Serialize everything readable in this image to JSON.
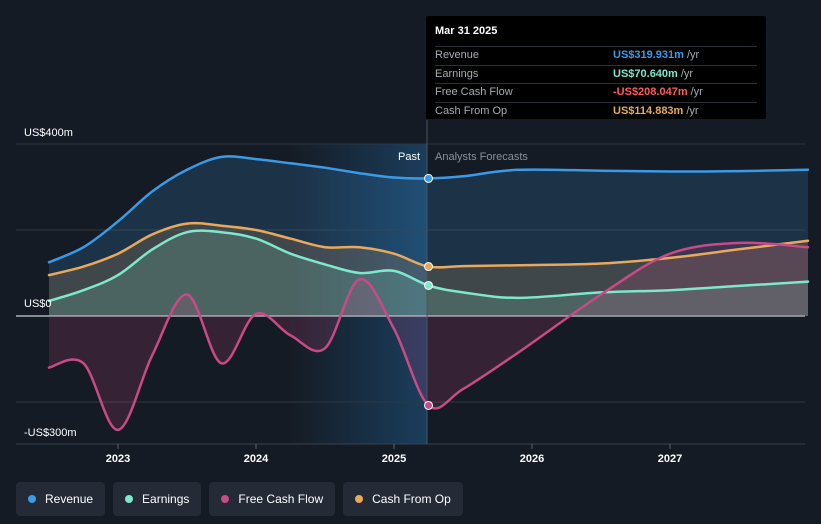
{
  "chart_data": {
    "type": "area",
    "x_ticks": [
      "2023",
      "2024",
      "2025",
      "2026",
      "2027"
    ],
    "y_axis": {
      "labels": [
        "US$400m",
        "US$0",
        "-US$300m"
      ],
      "ylim": [
        -300,
        400
      ]
    },
    "dividers": {
      "past_label": "Past",
      "forecast_label": "Analysts Forecasts"
    },
    "series": [
      {
        "key": "revenue",
        "name": "Revenue",
        "color": "#3b9ae6",
        "x": [
          2022.5,
          2022.75,
          2023.0,
          2023.25,
          2023.5,
          2023.75,
          2024.0,
          2024.25,
          2024.5,
          2024.75,
          2025.0,
          2025.25,
          2025.5,
          2025.9,
          2026.5,
          2027.0,
          2027.5,
          2028.0
        ],
        "values": [
          125,
          160,
          220,
          290,
          340,
          370,
          365,
          355,
          345,
          332,
          322,
          320,
          325,
          340,
          338,
          336,
          337,
          340
        ]
      },
      {
        "key": "earnings",
        "name": "Earnings",
        "color": "#7ee8cd",
        "x": [
          2022.5,
          2022.75,
          2023.0,
          2023.25,
          2023.5,
          2023.75,
          2024.0,
          2024.25,
          2024.5,
          2024.75,
          2025.0,
          2025.25,
          2025.5,
          2025.9,
          2026.5,
          2027.0,
          2027.5,
          2028.0
        ],
        "values": [
          35,
          60,
          95,
          155,
          195,
          195,
          180,
          145,
          120,
          100,
          105,
          71,
          55,
          42,
          55,
          60,
          70,
          80
        ]
      },
      {
        "key": "free_cash_flow",
        "name": "Free Cash Flow",
        "color": "#c84a86",
        "x": [
          2022.5,
          2022.75,
          2023.0,
          2023.25,
          2023.5,
          2023.75,
          2024.0,
          2024.25,
          2024.5,
          2024.75,
          2025.0,
          2025.25,
          2025.5,
          2025.9,
          2026.5,
          2027.0,
          2027.5,
          2028.0
        ],
        "values": [
          -120,
          -110,
          -265,
          -90,
          50,
          -110,
          5,
          -45,
          -75,
          85,
          -30,
          -208,
          -170,
          -85,
          50,
          145,
          170,
          160
        ]
      },
      {
        "key": "cash_from_op",
        "name": "Cash From Op",
        "color": "#e8a95c",
        "x": [
          2022.5,
          2022.75,
          2023.0,
          2023.25,
          2023.5,
          2023.75,
          2024.0,
          2024.25,
          2024.5,
          2024.75,
          2025.0,
          2025.25,
          2025.5,
          2025.9,
          2026.5,
          2027.0,
          2027.5,
          2028.0
        ],
        "values": [
          95,
          115,
          145,
          190,
          215,
          210,
          200,
          180,
          160,
          160,
          145,
          115,
          116,
          118,
          122,
          135,
          155,
          175
        ]
      }
    ]
  },
  "tooltip": {
    "date": "Mar 31 2025",
    "rows": [
      {
        "label": "Revenue",
        "value": "US$319.931m",
        "unit": "/yr",
        "color": "#3b9ae6"
      },
      {
        "label": "Earnings",
        "value": "US$70.640m",
        "unit": "/yr",
        "color": "#7ee8cd"
      },
      {
        "label": "Free Cash Flow",
        "value": "-US$208.047m",
        "unit": "/yr",
        "color": "#ff5b5b"
      },
      {
        "label": "Cash From Op",
        "value": "US$114.883m",
        "unit": "/yr",
        "color": "#e8a95c"
      }
    ]
  },
  "legend": [
    {
      "label": "Revenue",
      "color": "#3b9ae6"
    },
    {
      "label": "Earnings",
      "color": "#7ee8cd"
    },
    {
      "label": "Free Cash Flow",
      "color": "#c84a86"
    },
    {
      "label": "Cash From Op",
      "color": "#e8a95c"
    }
  ]
}
